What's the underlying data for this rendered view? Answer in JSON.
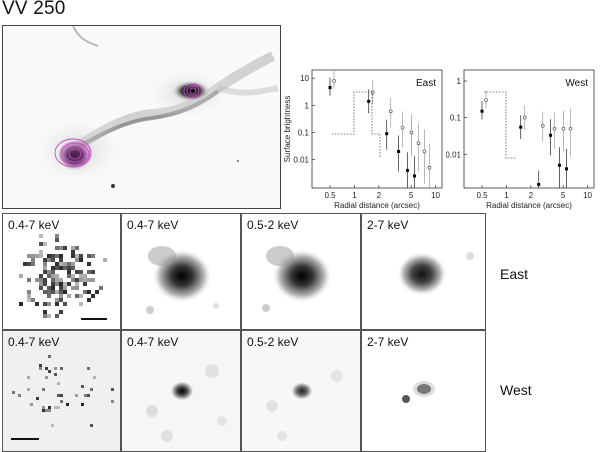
{
  "title": "VV 250",
  "rows": [
    {
      "label": "East",
      "bands": [
        "0.4-7 keV",
        "0.4-7 keV",
        "0.5-2 keV",
        "2-7 keV"
      ]
    },
    {
      "label": "West",
      "bands": [
        "0.4-7 keV",
        "0.4-7 keV",
        "0.5-2 keV",
        "2-7 keV"
      ]
    }
  ],
  "chart_data": [
    {
      "type": "scatter",
      "title": "East",
      "xlabel": "Radial distance (arcsec)",
      "ylabel": "Surface brightness",
      "xscale": "log",
      "yscale": "log",
      "xlim": [
        0.3,
        12
      ],
      "ylim": [
        0.0009,
        20
      ],
      "x_ticks": [
        "0.5",
        "1",
        "2",
        "5",
        "10"
      ],
      "y_ticks": [
        "10",
        "1",
        "0.1",
        "0.01"
      ],
      "series": [
        {
          "marker": "filled",
          "x": [
            0.5,
            1.5,
            2.5,
            3.5,
            4.5,
            5.5
          ],
          "y": [
            4.5,
            1.4,
            0.09,
            0.02,
            0.004,
            0.0025
          ]
        },
        {
          "marker": "open",
          "x": [
            0.5,
            1.5,
            2.5,
            3.5,
            4.5,
            5.5,
            6.5,
            7.5
          ],
          "y": [
            8,
            3,
            0.6,
            0.15,
            0.1,
            0.04,
            0.02,
            0.005
          ]
        }
      ]
    },
    {
      "type": "scatter",
      "title": "West",
      "xlabel": "Radial distance (arcsec)",
      "xscale": "log",
      "yscale": "log",
      "xlim": [
        0.3,
        12
      ],
      "ylim": [
        0.0012,
        2
      ],
      "x_ticks": [
        "0.5",
        "1",
        "2",
        "5",
        "10"
      ],
      "y_ticks": [
        "1",
        "0.1",
        "0.01"
      ],
      "series": [
        {
          "marker": "filled",
          "x": [
            0.5,
            1.5,
            2.5,
            3.5,
            4.5,
            5.5
          ],
          "y": [
            0.15,
            0.055,
            0.0015,
            0.033,
            0.005,
            0.004
          ]
        },
        {
          "marker": "open",
          "x": [
            0.5,
            1.5,
            2.5,
            3.5,
            4.5,
            5.5
          ],
          "y": [
            0.3,
            0.1,
            0.06,
            0.05,
            0.05,
            0.05
          ]
        }
      ]
    }
  ]
}
